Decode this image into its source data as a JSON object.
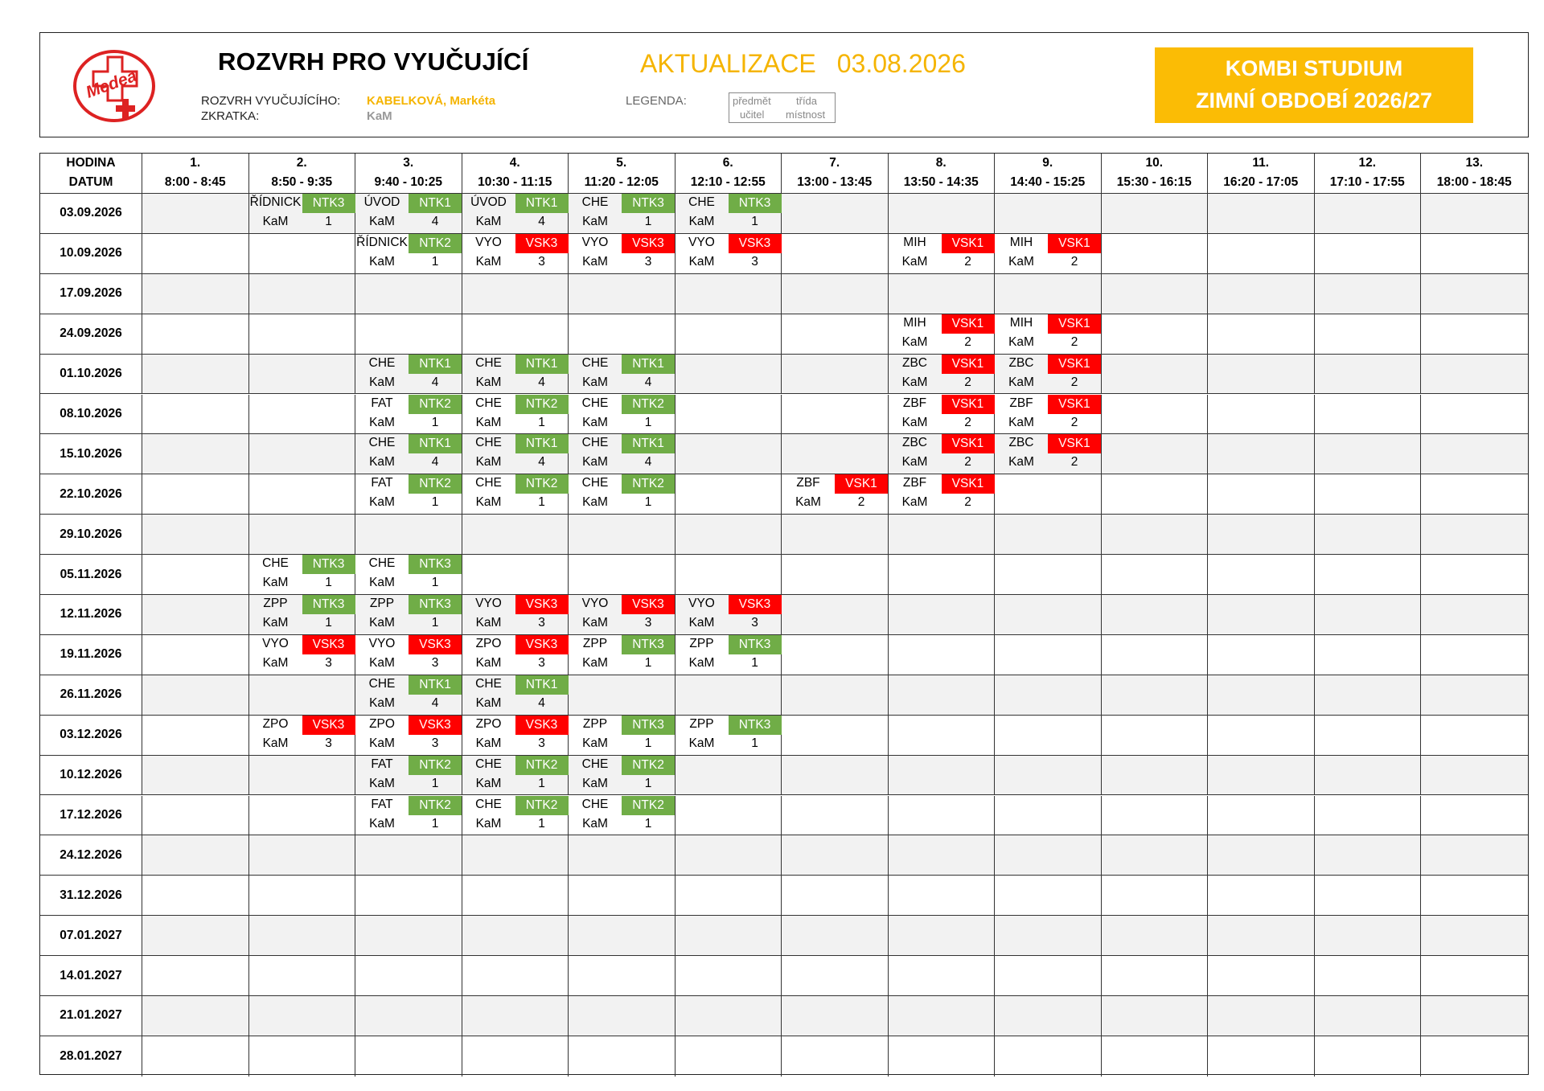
{
  "header": {
    "title": "ROZVRH PRO VYUČUJÍCÍ",
    "update_label": "AKTUALIZACE",
    "update_date": "03.08.2026",
    "teacher_label": "ROZVRH VYUČUJÍCÍHO:",
    "teacher_name": "KABELKOVÁ, Markéta",
    "abbr_label": "ZKRATKA:",
    "abbr_value": "KaM",
    "legend_label": "LEGENDA:",
    "legend": {
      "subject": "předmět",
      "class": "třída",
      "teacher": "učitel",
      "room": "místnost"
    },
    "kombi_line1": "KOMBI STUDIUM",
    "kombi_line2": "ZIMNÍ OBDOBÍ 2026/27",
    "logo_text": "Medea"
  },
  "colors": {
    "accent_yellow": "#fbbc05",
    "ntk_green": "#70ad47",
    "vsk_red": "#ff0000",
    "shade": "#f2f2f2"
  },
  "grid": {
    "corner_line1": "HODINA",
    "corner_line2": "DATUM",
    "periods": [
      {
        "num": "1.",
        "time": "8:00 - 8:45"
      },
      {
        "num": "2.",
        "time": "8:50 - 9:35"
      },
      {
        "num": "3.",
        "time": "9:40 - 10:25"
      },
      {
        "num": "4.",
        "time": "10:30 - 11:15"
      },
      {
        "num": "5.",
        "time": "11:20 - 12:05"
      },
      {
        "num": "6.",
        "time": "12:10 - 12:55"
      },
      {
        "num": "7.",
        "time": "13:00 - 13:45"
      },
      {
        "num": "8.",
        "time": "13:50 - 14:35"
      },
      {
        "num": "9.",
        "time": "14:40 - 15:25"
      },
      {
        "num": "10.",
        "time": "15:30 - 16:15"
      },
      {
        "num": "11.",
        "time": "16:20 - 17:05"
      },
      {
        "num": "12.",
        "time": "17:10 - 17:55"
      },
      {
        "num": "13.",
        "time": "18:00 - 18:45"
      }
    ],
    "rows": [
      {
        "date": "03.09.2026",
        "lessons": [
          {
            "period": 2,
            "subject": "ŘÍDNICK",
            "class": "NTK3",
            "teacher": "KaM",
            "room": "1"
          },
          {
            "period": 3,
            "subject": "ÚVOD",
            "class": "NTK1",
            "teacher": "KaM",
            "room": "4"
          },
          {
            "period": 4,
            "subject": "ÚVOD",
            "class": "NTK1",
            "teacher": "KaM",
            "room": "4"
          },
          {
            "period": 5,
            "subject": "CHE",
            "class": "NTK3",
            "teacher": "KaM",
            "room": "1"
          },
          {
            "period": 6,
            "subject": "CHE",
            "class": "NTK3",
            "teacher": "KaM",
            "room": "1"
          }
        ]
      },
      {
        "date": "10.09.2026",
        "lessons": [
          {
            "period": 3,
            "subject": "ŘÍDNICK",
            "class": "NTK2",
            "teacher": "KaM",
            "room": "1"
          },
          {
            "period": 4,
            "subject": "VYO",
            "class": "VSK3",
            "teacher": "KaM",
            "room": "3"
          },
          {
            "period": 5,
            "subject": "VYO",
            "class": "VSK3",
            "teacher": "KaM",
            "room": "3"
          },
          {
            "period": 6,
            "subject": "VYO",
            "class": "VSK3",
            "teacher": "KaM",
            "room": "3"
          },
          {
            "period": 8,
            "subject": "MIH",
            "class": "VSK1",
            "teacher": "KaM",
            "room": "2"
          },
          {
            "period": 9,
            "subject": "MIH",
            "class": "VSK1",
            "teacher": "KaM",
            "room": "2"
          }
        ]
      },
      {
        "date": "17.09.2026",
        "lessons": []
      },
      {
        "date": "24.09.2026",
        "lessons": [
          {
            "period": 8,
            "subject": "MIH",
            "class": "VSK1",
            "teacher": "KaM",
            "room": "2"
          },
          {
            "period": 9,
            "subject": "MIH",
            "class": "VSK1",
            "teacher": "KaM",
            "room": "2"
          }
        ]
      },
      {
        "date": "01.10.2026",
        "lessons": [
          {
            "period": 3,
            "subject": "CHE",
            "class": "NTK1",
            "teacher": "KaM",
            "room": "4"
          },
          {
            "period": 4,
            "subject": "CHE",
            "class": "NTK1",
            "teacher": "KaM",
            "room": "4"
          },
          {
            "period": 5,
            "subject": "CHE",
            "class": "NTK1",
            "teacher": "KaM",
            "room": "4"
          },
          {
            "period": 8,
            "subject": "ZBC",
            "class": "VSK1",
            "teacher": "KaM",
            "room": "2"
          },
          {
            "period": 9,
            "subject": "ZBC",
            "class": "VSK1",
            "teacher": "KaM",
            "room": "2"
          }
        ]
      },
      {
        "date": "08.10.2026",
        "lessons": [
          {
            "period": 3,
            "subject": "FAT",
            "class": "NTK2",
            "teacher": "KaM",
            "room": "1"
          },
          {
            "period": 4,
            "subject": "CHE",
            "class": "NTK2",
            "teacher": "KaM",
            "room": "1"
          },
          {
            "period": 5,
            "subject": "CHE",
            "class": "NTK2",
            "teacher": "KaM",
            "room": "1"
          },
          {
            "period": 8,
            "subject": "ZBF",
            "class": "VSK1",
            "teacher": "KaM",
            "room": "2"
          },
          {
            "period": 9,
            "subject": "ZBF",
            "class": "VSK1",
            "teacher": "KaM",
            "room": "2"
          }
        ]
      },
      {
        "date": "15.10.2026",
        "lessons": [
          {
            "period": 3,
            "subject": "CHE",
            "class": "NTK1",
            "teacher": "KaM",
            "room": "4"
          },
          {
            "period": 4,
            "subject": "CHE",
            "class": "NTK1",
            "teacher": "KaM",
            "room": "4"
          },
          {
            "period": 5,
            "subject": "CHE",
            "class": "NTK1",
            "teacher": "KaM",
            "room": "4"
          },
          {
            "period": 8,
            "subject": "ZBC",
            "class": "VSK1",
            "teacher": "KaM",
            "room": "2"
          },
          {
            "period": 9,
            "subject": "ZBC",
            "class": "VSK1",
            "teacher": "KaM",
            "room": "2"
          }
        ]
      },
      {
        "date": "22.10.2026",
        "lessons": [
          {
            "period": 3,
            "subject": "FAT",
            "class": "NTK2",
            "teacher": "KaM",
            "room": "1"
          },
          {
            "period": 4,
            "subject": "CHE",
            "class": "NTK2",
            "teacher": "KaM",
            "room": "1"
          },
          {
            "period": 5,
            "subject": "CHE",
            "class": "NTK2",
            "teacher": "KaM",
            "room": "1"
          },
          {
            "period": 7,
            "subject": "ZBF",
            "class": "VSK1",
            "teacher": "KaM",
            "room": "2"
          },
          {
            "period": 8,
            "subject": "ZBF",
            "class": "VSK1",
            "teacher": "KaM",
            "room": "2"
          }
        ]
      },
      {
        "date": "29.10.2026",
        "lessons": []
      },
      {
        "date": "05.11.2026",
        "lessons": [
          {
            "period": 2,
            "subject": "CHE",
            "class": "NTK3",
            "teacher": "KaM",
            "room": "1"
          },
          {
            "period": 3,
            "subject": "CHE",
            "class": "NTK3",
            "teacher": "KaM",
            "room": "1"
          }
        ]
      },
      {
        "date": "12.11.2026",
        "lessons": [
          {
            "period": 2,
            "subject": "ZPP",
            "class": "NTK3",
            "teacher": "KaM",
            "room": "1"
          },
          {
            "period": 3,
            "subject": "ZPP",
            "class": "NTK3",
            "teacher": "KaM",
            "room": "1"
          },
          {
            "period": 4,
            "subject": "VYO",
            "class": "VSK3",
            "teacher": "KaM",
            "room": "3"
          },
          {
            "period": 5,
            "subject": "VYO",
            "class": "VSK3",
            "teacher": "KaM",
            "room": "3"
          },
          {
            "period": 6,
            "subject": "VYO",
            "class": "VSK3",
            "teacher": "KaM",
            "room": "3"
          }
        ]
      },
      {
        "date": "19.11.2026",
        "lessons": [
          {
            "period": 2,
            "subject": "VYO",
            "class": "VSK3",
            "teacher": "KaM",
            "room": "3"
          },
          {
            "period": 3,
            "subject": "VYO",
            "class": "VSK3",
            "teacher": "KaM",
            "room": "3"
          },
          {
            "period": 4,
            "subject": "ZPO",
            "class": "VSK3",
            "teacher": "KaM",
            "room": "3"
          },
          {
            "period": 5,
            "subject": "ZPP",
            "class": "NTK3",
            "teacher": "KaM",
            "room": "1"
          },
          {
            "period": 6,
            "subject": "ZPP",
            "class": "NTK3",
            "teacher": "KaM",
            "room": "1"
          }
        ]
      },
      {
        "date": "26.11.2026",
        "lessons": [
          {
            "period": 3,
            "subject": "CHE",
            "class": "NTK1",
            "teacher": "KaM",
            "room": "4"
          },
          {
            "period": 4,
            "subject": "CHE",
            "class": "NTK1",
            "teacher": "KaM",
            "room": "4"
          }
        ]
      },
      {
        "date": "03.12.2026",
        "lessons": [
          {
            "period": 2,
            "subject": "ZPO",
            "class": "VSK3",
            "teacher": "KaM",
            "room": "3"
          },
          {
            "period": 3,
            "subject": "ZPO",
            "class": "VSK3",
            "teacher": "KaM",
            "room": "3"
          },
          {
            "period": 4,
            "subject": "ZPO",
            "class": "VSK3",
            "teacher": "KaM",
            "room": "3"
          },
          {
            "period": 5,
            "subject": "ZPP",
            "class": "NTK3",
            "teacher": "KaM",
            "room": "1"
          },
          {
            "period": 6,
            "subject": "ZPP",
            "class": "NTK3",
            "teacher": "KaM",
            "room": "1"
          }
        ]
      },
      {
        "date": "10.12.2026",
        "lessons": [
          {
            "period": 3,
            "subject": "FAT",
            "class": "NTK2",
            "teacher": "KaM",
            "room": "1"
          },
          {
            "period": 4,
            "subject": "CHE",
            "class": "NTK2",
            "teacher": "KaM",
            "room": "1"
          },
          {
            "period": 5,
            "subject": "CHE",
            "class": "NTK2",
            "teacher": "KaM",
            "room": "1"
          }
        ]
      },
      {
        "date": "17.12.2026",
        "lessons": [
          {
            "period": 3,
            "subject": "FAT",
            "class": "NTK2",
            "teacher": "KaM",
            "room": "1"
          },
          {
            "period": 4,
            "subject": "CHE",
            "class": "NTK2",
            "teacher": "KaM",
            "room": "1"
          },
          {
            "period": 5,
            "subject": "CHE",
            "class": "NTK2",
            "teacher": "KaM",
            "room": "1"
          }
        ]
      },
      {
        "date": "24.12.2026",
        "lessons": []
      },
      {
        "date": "31.12.2026",
        "lessons": []
      },
      {
        "date": "07.01.2027",
        "lessons": []
      },
      {
        "date": "14.01.2027",
        "lessons": []
      },
      {
        "date": "21.01.2027",
        "lessons": []
      },
      {
        "date": "28.01.2027",
        "lessons": []
      }
    ]
  }
}
